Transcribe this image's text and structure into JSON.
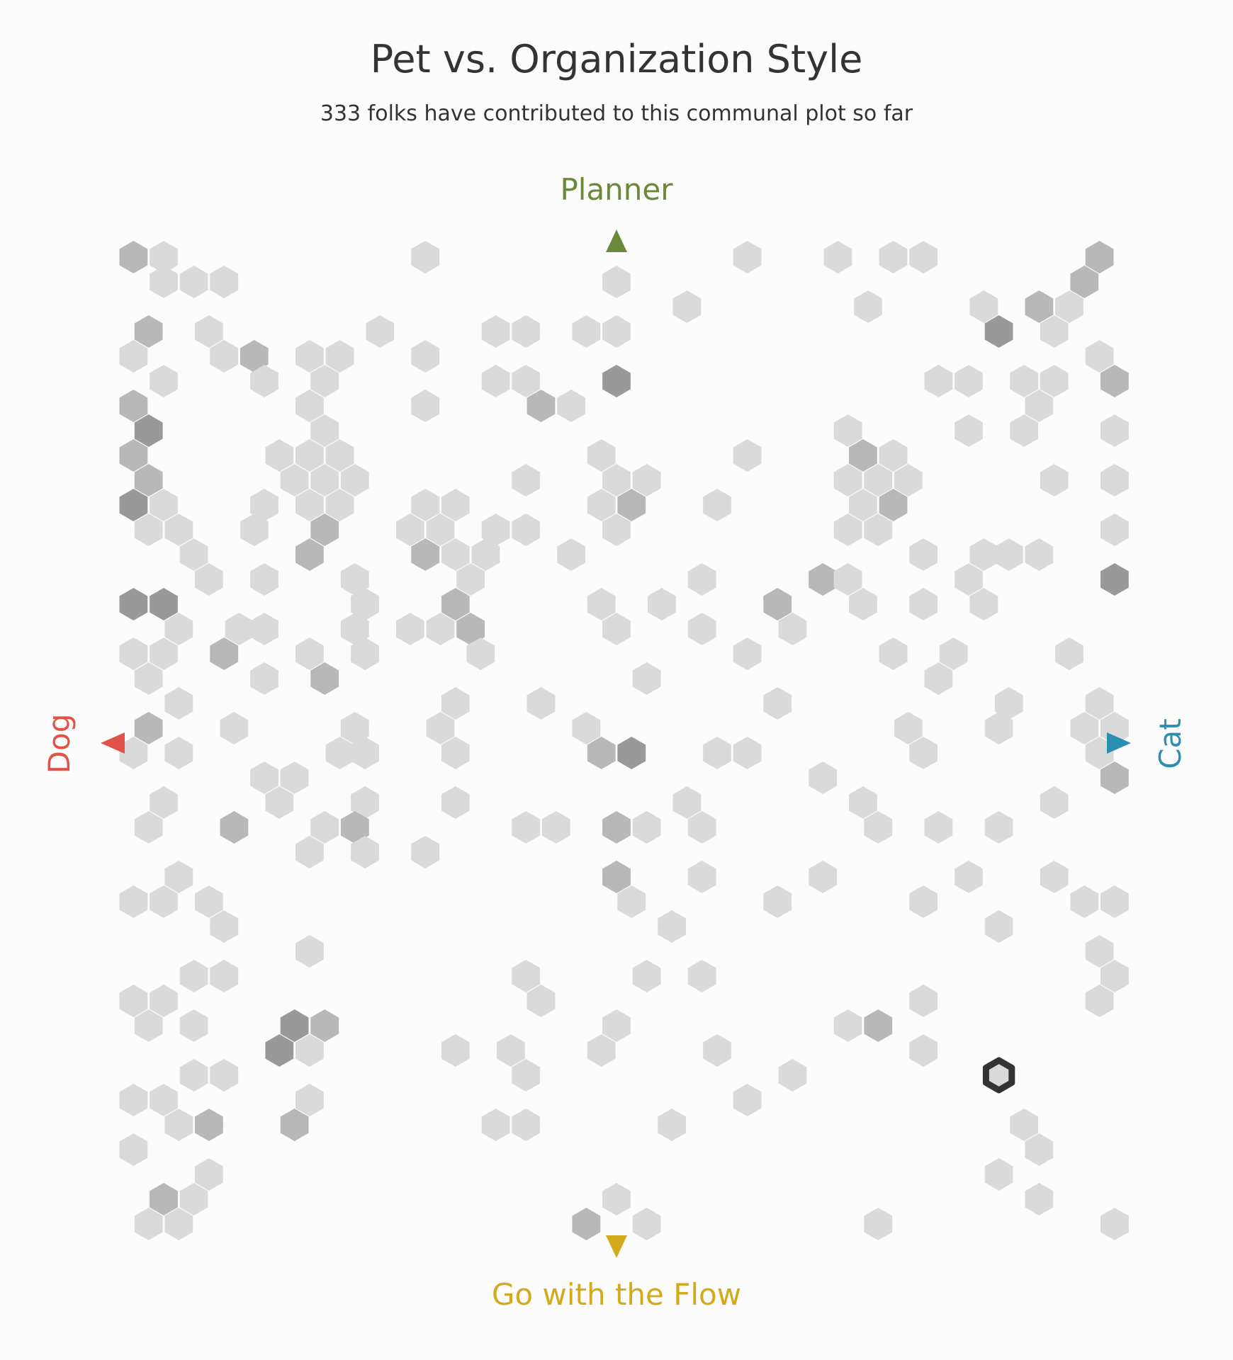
{
  "chart_data": {
    "type": "hexbin",
    "title": "Pet vs. Organization Style",
    "subtitle": "333 folks have contributed to this communal plot so far",
    "axis_labels": {
      "top": "Planner",
      "bottom": "Go with the Flow",
      "left": "Dog",
      "right": "Cat"
    },
    "colors": {
      "planner": "#6a8a3a",
      "flow": "#d4aa1c",
      "dog": "#e25248",
      "cat": "#2a8fb0",
      "hex_light": "#dadada",
      "hex_mid": "#b8b8b8",
      "hex_dark": "#999999",
      "highlight": "#333333"
    },
    "xlim": [
      -1,
      1
    ],
    "ylim": [
      -1,
      1
    ],
    "highlight": {
      "x": 0.76,
      "y": -0.67
    },
    "cells": [
      [
        -0.96,
        0.98,
        2
      ],
      [
        -0.9,
        0.98,
        1
      ],
      [
        -0.38,
        0.98,
        1
      ],
      [
        0.26,
        0.98,
        1
      ],
      [
        0.44,
        0.98,
        1
      ],
      [
        0.55,
        0.98,
        1
      ],
      [
        0.61,
        0.98,
        1
      ],
      [
        0.96,
        0.98,
        2
      ],
      [
        -0.9,
        0.93,
        1
      ],
      [
        -0.84,
        0.93,
        1
      ],
      [
        -0.78,
        0.93,
        1
      ],
      [
        0.0,
        0.93,
        1
      ],
      [
        0.14,
        0.88,
        1
      ],
      [
        0.5,
        0.88,
        1
      ],
      [
        0.73,
        0.88,
        1
      ],
      [
        0.84,
        0.88,
        2
      ],
      [
        0.9,
        0.88,
        1
      ],
      [
        0.93,
        0.93,
        2
      ],
      [
        -0.93,
        0.83,
        2
      ],
      [
        -0.81,
        0.83,
        1
      ],
      [
        -0.47,
        0.83,
        1
      ],
      [
        -0.24,
        0.83,
        1
      ],
      [
        -0.18,
        0.83,
        1
      ],
      [
        -0.06,
        0.83,
        1
      ],
      [
        0.0,
        0.83,
        1
      ],
      [
        0.76,
        0.83,
        3
      ],
      [
        0.87,
        0.83,
        1
      ],
      [
        -0.96,
        0.78,
        1
      ],
      [
        -0.78,
        0.78,
        1
      ],
      [
        -0.72,
        0.78,
        2
      ],
      [
        -0.61,
        0.78,
        1
      ],
      [
        -0.55,
        0.78,
        1
      ],
      [
        -0.38,
        0.78,
        1
      ],
      [
        0.96,
        0.78,
        1
      ],
      [
        -0.9,
        0.73,
        1
      ],
      [
        -0.7,
        0.73,
        1
      ],
      [
        -0.58,
        0.73,
        1
      ],
      [
        -0.24,
        0.73,
        1
      ],
      [
        -0.18,
        0.73,
        1
      ],
      [
        0.0,
        0.73,
        3
      ],
      [
        0.64,
        0.73,
        1
      ],
      [
        0.7,
        0.73,
        1
      ],
      [
        0.81,
        0.73,
        1
      ],
      [
        0.87,
        0.73,
        1
      ],
      [
        0.99,
        0.73,
        2
      ],
      [
        -0.96,
        0.68,
        2
      ],
      [
        -0.61,
        0.68,
        1
      ],
      [
        -0.38,
        0.68,
        1
      ],
      [
        -0.15,
        0.68,
        2
      ],
      [
        -0.09,
        0.68,
        1
      ],
      [
        0.84,
        0.68,
        1
      ],
      [
        -0.93,
        0.63,
        3
      ],
      [
        -0.58,
        0.63,
        1
      ],
      [
        0.46,
        0.63,
        1
      ],
      [
        0.7,
        0.63,
        1
      ],
      [
        0.81,
        0.63,
        1
      ],
      [
        0.99,
        0.63,
        1
      ],
      [
        -0.96,
        0.58,
        2
      ],
      [
        -0.67,
        0.58,
        1
      ],
      [
        -0.61,
        0.58,
        1
      ],
      [
        -0.55,
        0.58,
        1
      ],
      [
        -0.03,
        0.58,
        1
      ],
      [
        0.26,
        0.58,
        1
      ],
      [
        0.49,
        0.58,
        2
      ],
      [
        0.55,
        0.58,
        1
      ],
      [
        -0.93,
        0.53,
        2
      ],
      [
        -0.64,
        0.53,
        1
      ],
      [
        -0.58,
        0.53,
        1
      ],
      [
        -0.52,
        0.53,
        1
      ],
      [
        -0.18,
        0.53,
        1
      ],
      [
        0.0,
        0.53,
        1
      ],
      [
        0.06,
        0.53,
        1
      ],
      [
        0.46,
        0.53,
        1
      ],
      [
        0.52,
        0.53,
        1
      ],
      [
        0.58,
        0.53,
        1
      ],
      [
        0.87,
        0.53,
        1
      ],
      [
        0.99,
        0.53,
        1
      ],
      [
        -0.96,
        0.48,
        3
      ],
      [
        -0.9,
        0.48,
        1
      ],
      [
        -0.7,
        0.48,
        1
      ],
      [
        -0.61,
        0.48,
        1
      ],
      [
        -0.55,
        0.48,
        1
      ],
      [
        -0.38,
        0.48,
        1
      ],
      [
        -0.32,
        0.48,
        1
      ],
      [
        -0.03,
        0.48,
        1
      ],
      [
        0.03,
        0.48,
        2
      ],
      [
        0.2,
        0.48,
        1
      ],
      [
        0.49,
        0.48,
        1
      ],
      [
        0.55,
        0.48,
        2
      ],
      [
        -0.93,
        0.43,
        1
      ],
      [
        -0.87,
        0.43,
        1
      ],
      [
        -0.72,
        0.43,
        1
      ],
      [
        -0.58,
        0.43,
        2
      ],
      [
        -0.41,
        0.43,
        1
      ],
      [
        -0.35,
        0.43,
        1
      ],
      [
        -0.24,
        0.43,
        1
      ],
      [
        -0.18,
        0.43,
        1
      ],
      [
        0.0,
        0.43,
        1
      ],
      [
        0.46,
        0.43,
        1
      ],
      [
        0.52,
        0.43,
        1
      ],
      [
        0.99,
        0.43,
        1
      ],
      [
        -0.84,
        0.38,
        1
      ],
      [
        -0.61,
        0.38,
        2
      ],
      [
        -0.38,
        0.38,
        2
      ],
      [
        -0.32,
        0.38,
        1
      ],
      [
        -0.26,
        0.38,
        1
      ],
      [
        -0.09,
        0.38,
        1
      ],
      [
        0.61,
        0.38,
        1
      ],
      [
        0.73,
        0.38,
        1
      ],
      [
        0.78,
        0.38,
        1
      ],
      [
        0.84,
        0.38,
        1
      ],
      [
        -0.81,
        0.33,
        1
      ],
      [
        -0.7,
        0.33,
        1
      ],
      [
        -0.52,
        0.33,
        1
      ],
      [
        -0.29,
        0.33,
        1
      ],
      [
        0.17,
        0.33,
        1
      ],
      [
        0.41,
        0.33,
        2
      ],
      [
        0.46,
        0.33,
        1
      ],
      [
        0.7,
        0.33,
        1
      ],
      [
        0.99,
        0.33,
        3
      ],
      [
        -0.96,
        0.28,
        3
      ],
      [
        -0.9,
        0.28,
        3
      ],
      [
        -0.5,
        0.28,
        1
      ],
      [
        -0.32,
        0.28,
        2
      ],
      [
        -0.03,
        0.28,
        1
      ],
      [
        0.09,
        0.28,
        1
      ],
      [
        0.32,
        0.28,
        2
      ],
      [
        0.49,
        0.28,
        1
      ],
      [
        0.61,
        0.28,
        1
      ],
      [
        0.73,
        0.28,
        1
      ],
      [
        -0.87,
        0.23,
        1
      ],
      [
        -0.75,
        0.23,
        1
      ],
      [
        -0.7,
        0.23,
        1
      ],
      [
        -0.52,
        0.23,
        1
      ],
      [
        -0.41,
        0.23,
        1
      ],
      [
        -0.35,
        0.23,
        1
      ],
      [
        -0.29,
        0.23,
        2
      ],
      [
        0.0,
        0.23,
        1
      ],
      [
        0.17,
        0.23,
        1
      ],
      [
        0.35,
        0.23,
        1
      ],
      [
        -0.96,
        0.18,
        1
      ],
      [
        -0.9,
        0.18,
        1
      ],
      [
        -0.78,
        0.18,
        2
      ],
      [
        -0.61,
        0.18,
        1
      ],
      [
        -0.5,
        0.18,
        1
      ],
      [
        -0.27,
        0.18,
        1
      ],
      [
        0.26,
        0.18,
        1
      ],
      [
        0.55,
        0.18,
        1
      ],
      [
        0.67,
        0.18,
        1
      ],
      [
        0.9,
        0.18,
        1
      ],
      [
        -0.93,
        0.13,
        1
      ],
      [
        -0.7,
        0.13,
        1
      ],
      [
        -0.58,
        0.13,
        2
      ],
      [
        0.06,
        0.13,
        1
      ],
      [
        0.64,
        0.13,
        1
      ],
      [
        -0.87,
        0.08,
        1
      ],
      [
        -0.32,
        0.08,
        1
      ],
      [
        -0.15,
        0.08,
        1
      ],
      [
        0.32,
        0.08,
        1
      ],
      [
        0.78,
        0.08,
        1
      ],
      [
        0.96,
        0.08,
        1
      ],
      [
        -0.93,
        0.03,
        2
      ],
      [
        -0.76,
        0.03,
        1
      ],
      [
        -0.52,
        0.03,
        1
      ],
      [
        -0.35,
        0.03,
        1
      ],
      [
        -0.06,
        0.03,
        1
      ],
      [
        0.58,
        0.03,
        1
      ],
      [
        0.76,
        0.03,
        1
      ],
      [
        0.93,
        0.03,
        1
      ],
      [
        0.99,
        0.03,
        1
      ],
      [
        -0.96,
        -0.02,
        1
      ],
      [
        -0.87,
        -0.02,
        1
      ],
      [
        -0.55,
        -0.02,
        1
      ],
      [
        -0.5,
        -0.02,
        1
      ],
      [
        -0.32,
        -0.02,
        1
      ],
      [
        -0.03,
        -0.02,
        2
      ],
      [
        0.03,
        -0.02,
        3
      ],
      [
        0.2,
        -0.02,
        1
      ],
      [
        0.26,
        -0.02,
        1
      ],
      [
        0.61,
        -0.02,
        1
      ],
      [
        0.96,
        -0.02,
        1
      ],
      [
        -0.7,
        -0.07,
        1
      ],
      [
        -0.64,
        -0.07,
        1
      ],
      [
        0.41,
        -0.07,
        1
      ],
      [
        0.99,
        -0.07,
        2
      ],
      [
        -0.9,
        -0.12,
        1
      ],
      [
        -0.67,
        -0.12,
        1
      ],
      [
        -0.5,
        -0.12,
        1
      ],
      [
        -0.32,
        -0.12,
        1
      ],
      [
        0.14,
        -0.12,
        1
      ],
      [
        0.49,
        -0.12,
        1
      ],
      [
        0.87,
        -0.12,
        1
      ],
      [
        -0.93,
        -0.17,
        1
      ],
      [
        -0.76,
        -0.17,
        2
      ],
      [
        -0.58,
        -0.17,
        1
      ],
      [
        -0.52,
        -0.17,
        2
      ],
      [
        -0.18,
        -0.17,
        1
      ],
      [
        -0.12,
        -0.17,
        1
      ],
      [
        0.0,
        -0.17,
        2
      ],
      [
        0.06,
        -0.17,
        1
      ],
      [
        0.17,
        -0.17,
        1
      ],
      [
        0.52,
        -0.17,
        1
      ],
      [
        0.64,
        -0.17,
        1
      ],
      [
        0.76,
        -0.17,
        1
      ],
      [
        -0.61,
        -0.22,
        1
      ],
      [
        -0.5,
        -0.22,
        1
      ],
      [
        -0.38,
        -0.22,
        1
      ],
      [
        -0.87,
        -0.27,
        1
      ],
      [
        0.0,
        -0.27,
        2
      ],
      [
        0.17,
        -0.27,
        1
      ],
      [
        0.41,
        -0.27,
        1
      ],
      [
        0.7,
        -0.27,
        1
      ],
      [
        0.87,
        -0.27,
        1
      ],
      [
        -0.96,
        -0.32,
        1
      ],
      [
        -0.9,
        -0.32,
        1
      ],
      [
        -0.81,
        -0.32,
        1
      ],
      [
        0.03,
        -0.32,
        1
      ],
      [
        0.32,
        -0.32,
        1
      ],
      [
        0.61,
        -0.32,
        1
      ],
      [
        0.93,
        -0.32,
        1
      ],
      [
        0.99,
        -0.32,
        1
      ],
      [
        -0.78,
        -0.37,
        1
      ],
      [
        0.11,
        -0.37,
        1
      ],
      [
        0.76,
        -0.37,
        1
      ],
      [
        -0.61,
        -0.42,
        1
      ],
      [
        0.96,
        -0.42,
        1
      ],
      [
        -0.84,
        -0.47,
        1
      ],
      [
        -0.78,
        -0.47,
        1
      ],
      [
        -0.18,
        -0.47,
        1
      ],
      [
        0.06,
        -0.47,
        1
      ],
      [
        0.17,
        -0.47,
        1
      ],
      [
        0.99,
        -0.47,
        1
      ],
      [
        -0.96,
        -0.52,
        1
      ],
      [
        -0.9,
        -0.52,
        1
      ],
      [
        -0.15,
        -0.52,
        1
      ],
      [
        0.61,
        -0.52,
        1
      ],
      [
        0.96,
        -0.52,
        1
      ],
      [
        -0.93,
        -0.57,
        1
      ],
      [
        -0.84,
        -0.57,
        1
      ],
      [
        -0.64,
        -0.57,
        3
      ],
      [
        -0.58,
        -0.57,
        2
      ],
      [
        0.0,
        -0.57,
        1
      ],
      [
        0.46,
        -0.57,
        1
      ],
      [
        0.52,
        -0.57,
        2
      ],
      [
        -0.67,
        -0.62,
        3
      ],
      [
        -0.61,
        -0.62,
        1
      ],
      [
        -0.32,
        -0.62,
        1
      ],
      [
        -0.21,
        -0.62,
        1
      ],
      [
        -0.03,
        -0.62,
        1
      ],
      [
        0.2,
        -0.62,
        1
      ],
      [
        0.61,
        -0.62,
        1
      ],
      [
        -0.84,
        -0.67,
        1
      ],
      [
        -0.78,
        -0.67,
        1
      ],
      [
        -0.18,
        -0.67,
        1
      ],
      [
        0.35,
        -0.67,
        1
      ],
      [
        -0.96,
        -0.72,
        1
      ],
      [
        -0.9,
        -0.72,
        1
      ],
      [
        -0.61,
        -0.72,
        1
      ],
      [
        0.26,
        -0.72,
        1
      ],
      [
        -0.87,
        -0.77,
        1
      ],
      [
        -0.81,
        -0.77,
        2
      ],
      [
        -0.64,
        -0.77,
        2
      ],
      [
        -0.24,
        -0.77,
        1
      ],
      [
        -0.18,
        -0.77,
        1
      ],
      [
        0.11,
        -0.77,
        1
      ],
      [
        0.81,
        -0.77,
        1
      ],
      [
        -0.96,
        -0.82,
        1
      ],
      [
        0.84,
        -0.82,
        1
      ],
      [
        -0.81,
        -0.87,
        1
      ],
      [
        0.76,
        -0.87,
        1
      ],
      [
        -0.9,
        -0.92,
        2
      ],
      [
        -0.84,
        -0.92,
        1
      ],
      [
        0.0,
        -0.92,
        1
      ],
      [
        0.84,
        -0.92,
        1
      ],
      [
        -0.93,
        -0.97,
        1
      ],
      [
        -0.87,
        -0.97,
        1
      ],
      [
        -0.06,
        -0.97,
        2
      ],
      [
        0.06,
        -0.97,
        1
      ],
      [
        0.52,
        -0.97,
        1
      ],
      [
        0.99,
        -0.97,
        1
      ]
    ]
  }
}
